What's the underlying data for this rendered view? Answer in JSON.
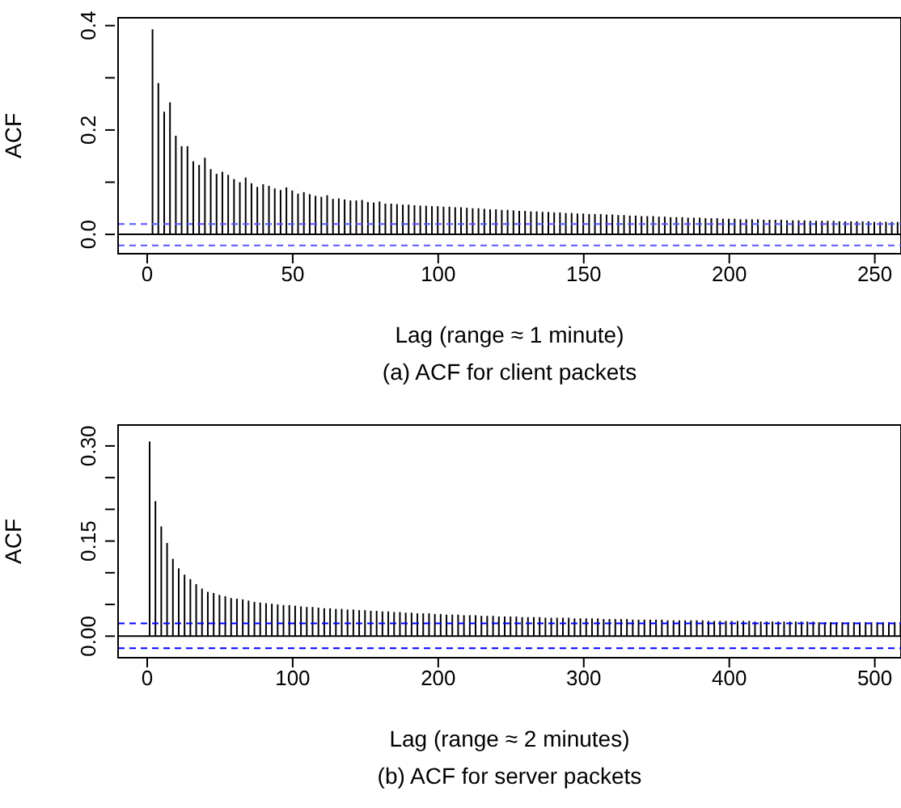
{
  "chart_data": [
    {
      "type": "bar",
      "title": "(a) ACF for client packets",
      "xlabel": "Lag (range ≈ 1 minute)",
      "ylabel": "ACF",
      "color": "#000000",
      "x": [
        2,
        4,
        6,
        8,
        10,
        12,
        14,
        16,
        18,
        20,
        22,
        24,
        26,
        28,
        30,
        32,
        34,
        36,
        38,
        40,
        42,
        44,
        46,
        48,
        50,
        52,
        54,
        56,
        58,
        60,
        62,
        64,
        66,
        68,
        70,
        72,
        74,
        76,
        78,
        80,
        82,
        84,
        86,
        88,
        90,
        92,
        94,
        96,
        98,
        100,
        102,
        104,
        106,
        108,
        110,
        112,
        114,
        116,
        118,
        120,
        122,
        124,
        126,
        128,
        130,
        132,
        134,
        136,
        138,
        140,
        142,
        144,
        146,
        148,
        150,
        152,
        154,
        156,
        158,
        160,
        162,
        164,
        166,
        168,
        170,
        172,
        174,
        176,
        178,
        180,
        182,
        184,
        186,
        188,
        190,
        192,
        194,
        196,
        198,
        200,
        202,
        204,
        206,
        208,
        210,
        212,
        214,
        216,
        218,
        220,
        222,
        224,
        226,
        228,
        230,
        232,
        234,
        236,
        238,
        240,
        242,
        244,
        246,
        248,
        250,
        252,
        254,
        256,
        258
      ],
      "values": [
        0.393,
        0.29,
        0.235,
        0.253,
        0.189,
        0.169,
        0.169,
        0.14,
        0.133,
        0.147,
        0.125,
        0.116,
        0.12,
        0.114,
        0.106,
        0.1,
        0.109,
        0.098,
        0.091,
        0.096,
        0.093,
        0.088,
        0.085,
        0.09,
        0.084,
        0.078,
        0.081,
        0.077,
        0.074,
        0.072,
        0.075,
        0.068,
        0.069,
        0.067,
        0.065,
        0.065,
        0.066,
        0.062,
        0.061,
        0.063,
        0.059,
        0.059,
        0.058,
        0.057,
        0.057,
        0.056,
        0.055,
        0.055,
        0.054,
        0.054,
        0.053,
        0.053,
        0.052,
        0.052,
        0.051,
        0.05,
        0.05,
        0.049,
        0.048,
        0.048,
        0.047,
        0.047,
        0.046,
        0.045,
        0.045,
        0.044,
        0.044,
        0.043,
        0.043,
        0.042,
        0.042,
        0.041,
        0.041,
        0.04,
        0.04,
        0.039,
        0.039,
        0.039,
        0.038,
        0.038,
        0.037,
        0.037,
        0.036,
        0.036,
        0.035,
        0.035,
        0.035,
        0.034,
        0.034,
        0.033,
        0.033,
        0.033,
        0.032,
        0.032,
        0.032,
        0.031,
        0.031,
        0.031,
        0.03,
        0.03,
        0.03,
        0.029,
        0.029,
        0.029,
        0.029,
        0.028,
        0.028,
        0.028,
        0.028,
        0.027,
        0.027,
        0.027,
        0.027,
        0.026,
        0.026,
        0.026,
        0.026,
        0.026,
        0.025,
        0.025,
        0.025,
        0.025,
        0.025,
        0.025,
        0.024,
        0.024,
        0.024,
        0.024,
        0.024
      ],
      "xlim": [
        -10,
        259
      ],
      "xticks": [
        0,
        50,
        100,
        150,
        200,
        250
      ],
      "ylim": [
        -0.037,
        0.415
      ],
      "yticks": [
        {
          "value": 0,
          "label": "0.0"
        },
        {
          "value": 0.1,
          "label": null
        },
        {
          "value": 0.2,
          "label": "0.2"
        },
        {
          "value": 0.3,
          "label": null
        },
        {
          "value": 0.4,
          "label": "0.4"
        }
      ],
      "ref_lines": [
        {
          "axis": "y",
          "value": 0,
          "color": "#000000",
          "line_style": "solid"
        },
        {
          "axis": "y",
          "value": 0.02,
          "color": "#5555ff",
          "line_style": "dashed"
        },
        {
          "axis": "y",
          "value": -0.021,
          "color": "#5555ff",
          "line_style": "dashed"
        }
      ]
    },
    {
      "type": "bar",
      "title": "(b) ACF for server packets",
      "xlabel": "Lag (range ≈ 2 minutes)",
      "ylabel": "ACF",
      "color": "#000000",
      "x": [
        2,
        6,
        10,
        14,
        18,
        22,
        26,
        30,
        34,
        38,
        42,
        46,
        50,
        54,
        58,
        62,
        66,
        70,
        74,
        78,
        82,
        86,
        90,
        94,
        98,
        102,
        106,
        110,
        114,
        118,
        122,
        126,
        130,
        134,
        138,
        142,
        146,
        150,
        154,
        158,
        162,
        166,
        170,
        174,
        178,
        182,
        186,
        190,
        194,
        198,
        202,
        206,
        210,
        214,
        218,
        222,
        226,
        230,
        234,
        238,
        242,
        246,
        250,
        254,
        258,
        262,
        266,
        270,
        274,
        278,
        282,
        286,
        290,
        294,
        298,
        302,
        306,
        310,
        314,
        318,
        322,
        326,
        330,
        334,
        338,
        342,
        346,
        350,
        354,
        358,
        362,
        366,
        370,
        374,
        378,
        382,
        386,
        390,
        394,
        398,
        402,
        406,
        410,
        414,
        418,
        422,
        426,
        430,
        434,
        438,
        442,
        446,
        450,
        454,
        458,
        462,
        466,
        470,
        474,
        478,
        482,
        486,
        490,
        494,
        498,
        502,
        506,
        510,
        514,
        518
      ],
      "values": [
        0.307,
        0.213,
        0.173,
        0.147,
        0.122,
        0.107,
        0.097,
        0.09,
        0.082,
        0.075,
        0.07,
        0.068,
        0.065,
        0.063,
        0.06,
        0.059,
        0.058,
        0.056,
        0.054,
        0.053,
        0.052,
        0.051,
        0.05,
        0.049,
        0.049,
        0.048,
        0.047,
        0.046,
        0.046,
        0.045,
        0.044,
        0.044,
        0.043,
        0.043,
        0.042,
        0.042,
        0.041,
        0.041,
        0.04,
        0.04,
        0.039,
        0.039,
        0.038,
        0.038,
        0.037,
        0.037,
        0.036,
        0.036,
        0.036,
        0.035,
        0.035,
        0.034,
        0.034,
        0.034,
        0.033,
        0.033,
        0.033,
        0.032,
        0.032,
        0.032,
        0.031,
        0.031,
        0.031,
        0.031,
        0.03,
        0.03,
        0.03,
        0.03,
        0.029,
        0.029,
        0.029,
        0.029,
        0.029,
        0.028,
        0.028,
        0.028,
        0.028,
        0.028,
        0.027,
        0.027,
        0.027,
        0.027,
        0.027,
        0.026,
        0.026,
        0.026,
        0.026,
        0.026,
        0.026,
        0.025,
        0.025,
        0.025,
        0.025,
        0.025,
        0.025,
        0.025,
        0.024,
        0.024,
        0.024,
        0.024,
        0.024,
        0.024,
        0.024,
        0.024,
        0.023,
        0.023,
        0.023,
        0.023,
        0.023,
        0.023,
        0.023,
        0.023,
        0.023,
        0.023,
        0.023,
        0.022,
        0.022,
        0.022,
        0.022,
        0.022,
        0.022,
        0.022,
        0.022,
        0.022,
        0.022,
        0.022,
        0.022,
        0.022,
        0.022,
        0.022
      ],
      "xlim": [
        -20,
        518
      ],
      "xticks": [
        0,
        100,
        200,
        300,
        400,
        500
      ],
      "ylim": [
        -0.034,
        0.333
      ],
      "yticks": [
        {
          "value": 0,
          "label": "0.00"
        },
        {
          "value": 0.05,
          "label": null
        },
        {
          "value": 0.1,
          "label": null
        },
        {
          "value": 0.15,
          "label": "0.15"
        },
        {
          "value": 0.2,
          "label": null
        },
        {
          "value": 0.25,
          "label": null
        },
        {
          "value": 0.3,
          "label": "0.30"
        }
      ],
      "ref_lines": [
        {
          "axis": "y",
          "value": 0,
          "color": "#000000",
          "line_style": "solid"
        },
        {
          "axis": "y",
          "value": 0.02,
          "color": "#0000ff",
          "line_style": "dashed"
        },
        {
          "axis": "y",
          "value": -0.019,
          "color": "#0000ff",
          "line_style": "dashed"
        }
      ]
    }
  ]
}
